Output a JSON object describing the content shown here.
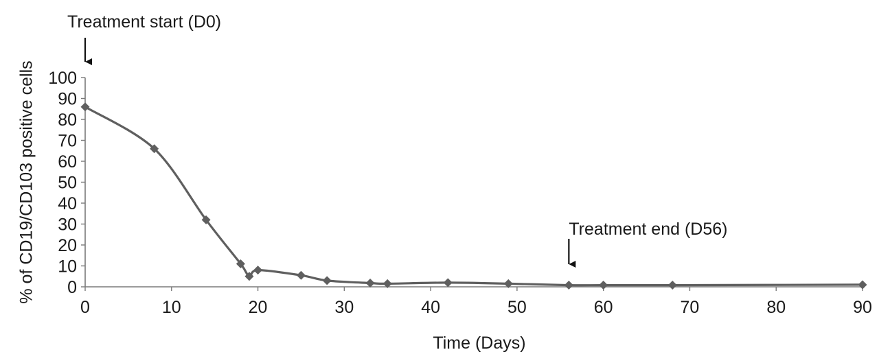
{
  "chart_data": {
    "type": "line",
    "title": "",
    "xlabel": "Time (Days)",
    "ylabel": "% of CD19/CD103 positive cells",
    "xlim": [
      0,
      90
    ],
    "ylim": [
      0,
      100
    ],
    "x_ticks": [
      "0",
      "10",
      "20",
      "30",
      "40",
      "50",
      "60",
      "70",
      "80",
      "90"
    ],
    "y_ticks": [
      "0",
      "10",
      "20",
      "30",
      "40",
      "50",
      "60",
      "70",
      "80",
      "90",
      "100"
    ],
    "grid": false,
    "legend": "none",
    "series": [
      {
        "color": "#5f5f5f",
        "marker": "diamond",
        "smooth": true,
        "x": [
          0,
          8,
          14,
          18,
          19,
          20,
          25,
          28,
          33,
          35,
          42,
          49,
          56,
          60,
          68,
          90
        ],
        "y": [
          86,
          66,
          32,
          11,
          5,
          8,
          5.5,
          3,
          1.8,
          1.5,
          2,
          1.5,
          0.8,
          0.8,
          0.8,
          1
        ]
      }
    ],
    "annotations": [
      {
        "text": "Treatment start (D0)",
        "x": 0,
        "arrow": "down"
      },
      {
        "text": "Treatment end (D56)",
        "x": 56,
        "arrow": "down"
      }
    ]
  }
}
